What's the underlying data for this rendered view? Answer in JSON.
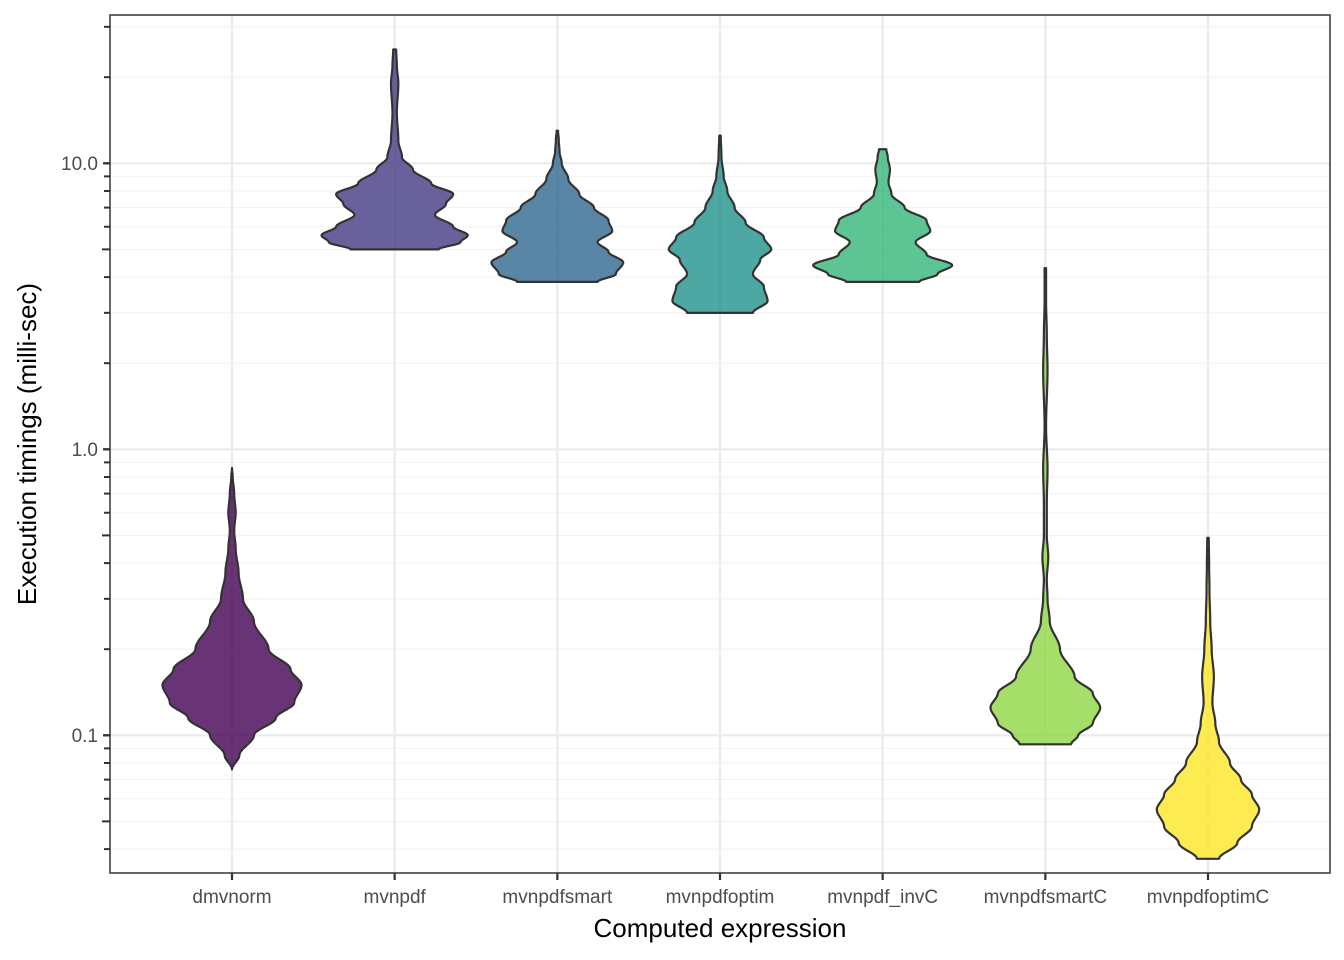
{
  "chart_data": {
    "type": "violin",
    "xlabel": "Computed expression",
    "ylabel": "Execution timings (milli-sec)",
    "y_scale": "log10",
    "ylim": [
      0.033,
      33
    ],
    "y_ticks": [
      0.1,
      1.0,
      10.0
    ],
    "y_tick_labels": [
      "0.1",
      "1.0",
      "10.0"
    ],
    "grid": true,
    "legend": "none",
    "categories": [
      "dmvnorm",
      "mvnpdf",
      "mvnpdfsmart",
      "mvnpdfoptim",
      "mvnpdf_invC",
      "mvnpdfsmartC",
      "mvnpdfoptimC"
    ],
    "series": [
      {
        "name": "dmvnorm",
        "color": "#440154",
        "min": 0.076,
        "max": 0.86,
        "density": [
          [
            0.076,
            0.0
          ],
          [
            0.085,
            0.1
          ],
          [
            0.1,
            0.3
          ],
          [
            0.115,
            0.6
          ],
          [
            0.13,
            0.85
          ],
          [
            0.15,
            0.95
          ],
          [
            0.17,
            0.8
          ],
          [
            0.2,
            0.5
          ],
          [
            0.25,
            0.3
          ],
          [
            0.3,
            0.15
          ],
          [
            0.37,
            0.09
          ],
          [
            0.45,
            0.05
          ],
          [
            0.52,
            0.03
          ],
          [
            0.6,
            0.05
          ],
          [
            0.7,
            0.03
          ],
          [
            0.8,
            0.01
          ],
          [
            0.86,
            0.0
          ]
        ]
      },
      {
        "name": "mvnpdf",
        "color": "#443A83",
        "min": 5.0,
        "max": 25.0,
        "density": [
          [
            5.0,
            0.6
          ],
          [
            5.3,
            0.9
          ],
          [
            5.6,
            1.0
          ],
          [
            6.0,
            0.8
          ],
          [
            6.6,
            0.55
          ],
          [
            7.2,
            0.7
          ],
          [
            7.8,
            0.8
          ],
          [
            8.5,
            0.5
          ],
          [
            9.5,
            0.25
          ],
          [
            10.5,
            0.1
          ],
          [
            12,
            0.05
          ],
          [
            15,
            0.03
          ],
          [
            19,
            0.05
          ],
          [
            22,
            0.03
          ],
          [
            25,
            0.02
          ]
        ]
      },
      {
        "name": "mvnpdfsmart",
        "color": "#31688E",
        "min": 3.85,
        "max": 13.0,
        "density": [
          [
            3.85,
            0.55
          ],
          [
            4.1,
            0.8
          ],
          [
            4.5,
            0.9
          ],
          [
            4.9,
            0.7
          ],
          [
            5.3,
            0.55
          ],
          [
            5.8,
            0.75
          ],
          [
            6.3,
            0.7
          ],
          [
            7.0,
            0.5
          ],
          [
            7.8,
            0.3
          ],
          [
            8.8,
            0.15
          ],
          [
            10,
            0.06
          ],
          [
            11,
            0.03
          ],
          [
            12,
            0.02
          ],
          [
            13,
            0.01
          ]
        ]
      },
      {
        "name": "mvnpdfoptim",
        "color": "#21918C",
        "min": 3.0,
        "max": 12.5,
        "density": [
          [
            3.0,
            0.45
          ],
          [
            3.3,
            0.65
          ],
          [
            3.7,
            0.6
          ],
          [
            4.1,
            0.45
          ],
          [
            4.6,
            0.55
          ],
          [
            5.0,
            0.7
          ],
          [
            5.5,
            0.6
          ],
          [
            6.2,
            0.35
          ],
          [
            7.0,
            0.2
          ],
          [
            8.0,
            0.1
          ],
          [
            9.0,
            0.05
          ],
          [
            10.5,
            0.02
          ],
          [
            12.5,
            0.01
          ]
        ]
      },
      {
        "name": "mvnpdf_invC",
        "color": "#35B779",
        "min": 3.85,
        "max": 11.2,
        "density": [
          [
            3.85,
            0.5
          ],
          [
            4.1,
            0.75
          ],
          [
            4.4,
            0.95
          ],
          [
            4.8,
            0.6
          ],
          [
            5.3,
            0.45
          ],
          [
            5.8,
            0.65
          ],
          [
            6.3,
            0.6
          ],
          [
            7.0,
            0.3
          ],
          [
            7.8,
            0.12
          ],
          [
            8.6,
            0.08
          ],
          [
            9.5,
            0.1
          ],
          [
            10.5,
            0.07
          ],
          [
            11.2,
            0.05
          ]
        ]
      },
      {
        "name": "mvnpdfsmartC",
        "color": "#8FD744",
        "min": 0.093,
        "max": 4.3,
        "density": [
          [
            0.093,
            0.35
          ],
          [
            0.1,
            0.45
          ],
          [
            0.11,
            0.65
          ],
          [
            0.125,
            0.75
          ],
          [
            0.14,
            0.65
          ],
          [
            0.16,
            0.4
          ],
          [
            0.2,
            0.2
          ],
          [
            0.25,
            0.06
          ],
          [
            0.3,
            0.03
          ],
          [
            0.35,
            0.02
          ],
          [
            0.42,
            0.04
          ],
          [
            0.5,
            0.02
          ],
          [
            0.65,
            0.02
          ],
          [
            0.85,
            0.03
          ],
          [
            1.2,
            0.01
          ],
          [
            1.9,
            0.03
          ],
          [
            2.5,
            0.02
          ],
          [
            3.3,
            0.01
          ],
          [
            4.3,
            0.01
          ]
        ]
      },
      {
        "name": "mvnpdfoptimC",
        "color": "#FDE725",
        "min": 0.037,
        "max": 0.49,
        "density": [
          [
            0.037,
            0.15
          ],
          [
            0.042,
            0.4
          ],
          [
            0.048,
            0.6
          ],
          [
            0.055,
            0.7
          ],
          [
            0.062,
            0.6
          ],
          [
            0.07,
            0.45
          ],
          [
            0.08,
            0.3
          ],
          [
            0.095,
            0.15
          ],
          [
            0.11,
            0.1
          ],
          [
            0.13,
            0.06
          ],
          [
            0.16,
            0.08
          ],
          [
            0.2,
            0.05
          ],
          [
            0.25,
            0.03
          ],
          [
            0.32,
            0.02
          ],
          [
            0.4,
            0.015
          ],
          [
            0.49,
            0.01
          ]
        ]
      }
    ]
  }
}
